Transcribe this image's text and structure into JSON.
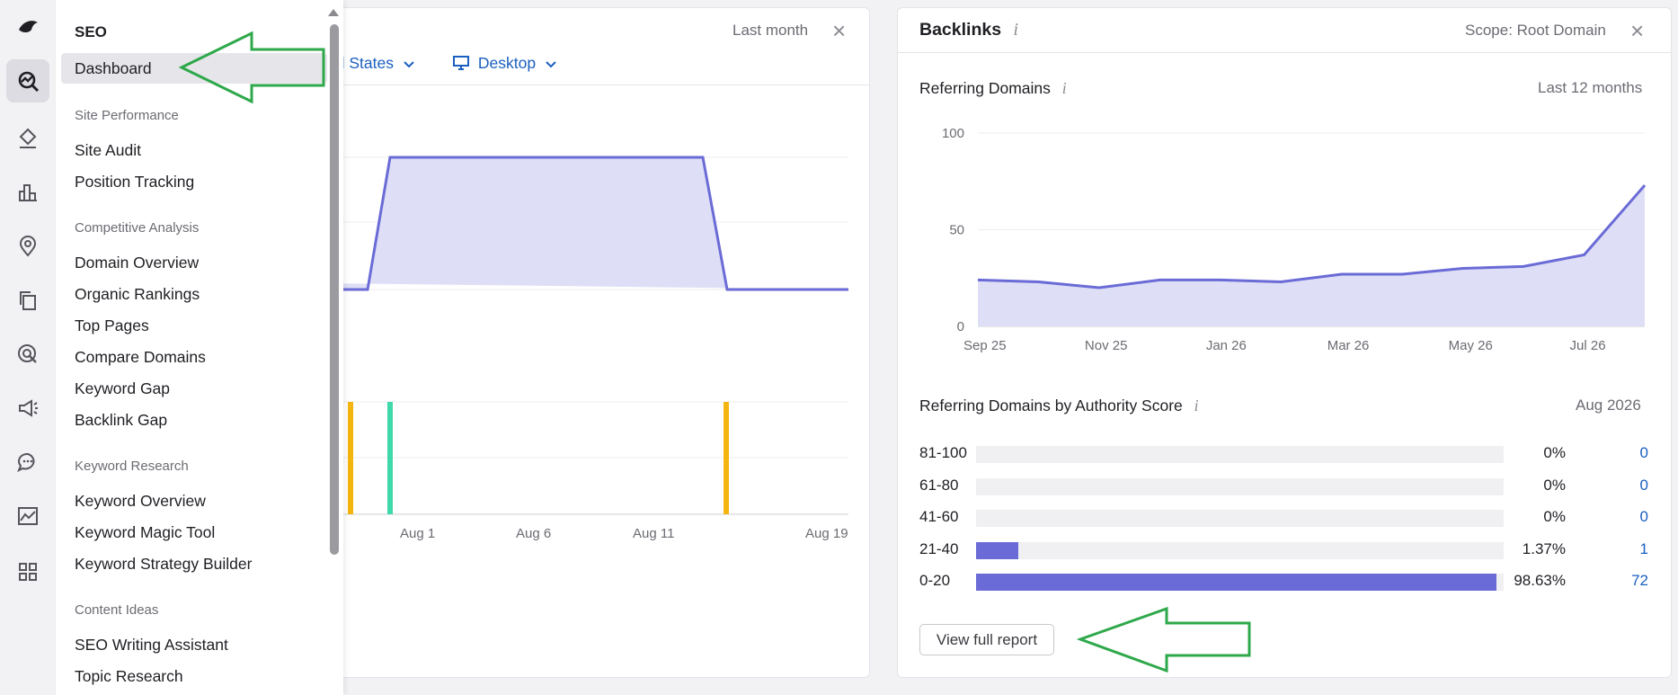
{
  "left_card": {
    "period": "Last month",
    "country_filter": "ed States",
    "device_filter": "Desktop",
    "x_ticks": [
      "Aug 1",
      "Aug 6",
      "Aug 11",
      "Aug 19"
    ]
  },
  "backlinks": {
    "title": "Backlinks",
    "scope": "Scope: Root Domain",
    "referring_domains": {
      "title": "Referring Domains",
      "period": "Last 12 months"
    },
    "authority": {
      "title": "Referring Domains by Authority Score",
      "period": "Aug 2026",
      "rows": [
        {
          "label": "81-100",
          "pct": "0%",
          "count": "0",
          "fraction": 0
        },
        {
          "label": "61-80",
          "pct": "0%",
          "count": "0",
          "fraction": 0
        },
        {
          "label": "41-60",
          "pct": "0%",
          "count": "0",
          "fraction": 0
        },
        {
          "label": "21-40",
          "pct": "1.37%",
          "count": "1",
          "fraction": 0.0137
        },
        {
          "label": "0-20",
          "pct": "98.63%",
          "count": "72",
          "fraction": 0.9863
        }
      ]
    },
    "view_report_label": "View full report"
  },
  "chart_data": {
    "type": "area",
    "x": [
      "Sep 25",
      "Oct 25",
      "Nov 25",
      "Dec 25",
      "Jan 26",
      "Feb 26",
      "Mar 26",
      "Apr 26",
      "May 26",
      "Jun 26",
      "Jul 26",
      "Aug 26"
    ],
    "x_tick_labels": [
      "Sep 25",
      "Nov 25",
      "Jan 26",
      "Mar 26",
      "May 26",
      "Jul 26"
    ],
    "values": [
      24,
      23,
      20,
      24,
      24,
      23,
      27,
      27,
      30,
      31,
      37,
      73
    ],
    "ylim": [
      0,
      100
    ],
    "y_ticks": [
      "0",
      "50",
      "100"
    ],
    "grid": true
  },
  "menu": {
    "title": "SEO",
    "dashboard": "Dashboard",
    "sections": [
      {
        "title": "Site Performance",
        "items": [
          "Site Audit",
          "Position Tracking"
        ]
      },
      {
        "title": "Competitive Analysis",
        "items": [
          "Domain Overview",
          "Organic Rankings",
          "Top Pages",
          "Compare Domains",
          "Keyword Gap",
          "Backlink Gap"
        ]
      },
      {
        "title": "Keyword Research",
        "items": [
          "Keyword Overview",
          "Keyword Magic Tool",
          "Keyword Strategy Builder"
        ]
      },
      {
        "title": "Content Ideas",
        "items": [
          "SEO Writing Assistant",
          "Topic Research"
        ]
      }
    ]
  },
  "colors": {
    "accent": "#6a6bd6",
    "area_fill": "#dedff6",
    "annotation_arrow": "#2ea84a",
    "bar_yellow": "#f5b50f",
    "bar_green": "#3fd9ab"
  }
}
